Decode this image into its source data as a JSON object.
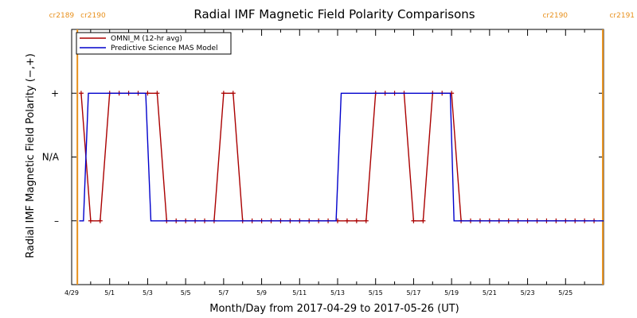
{
  "chart_data": {
    "type": "line",
    "title": "Radial IMF Magnetic Field Polarity Comparisons",
    "xlabel": "Month/Day from 2017-04-29 to 2017-05-26 (UT)",
    "ylabel": "Radial IMF Magnetic Field Polarity (−,+)",
    "x_range_days_from_0429": [
      0,
      28
    ],
    "y_range": [
      -2,
      2
    ],
    "x_ticks": [
      {
        "label": "4/29",
        "x": 0
      },
      {
        "label": "5/1",
        "x": 2
      },
      {
        "label": "5/3",
        "x": 4
      },
      {
        "label": "5/5",
        "x": 6
      },
      {
        "label": "5/7",
        "x": 8
      },
      {
        "label": "5/9",
        "x": 10
      },
      {
        "label": "5/11",
        "x": 12
      },
      {
        "label": "5/13",
        "x": 14
      },
      {
        "label": "5/15",
        "x": 16
      },
      {
        "label": "5/17",
        "x": 18
      },
      {
        "label": "5/19",
        "x": 20
      },
      {
        "label": "5/21",
        "x": 22
      },
      {
        "label": "5/23",
        "x": 24
      },
      {
        "label": "5/25",
        "x": 26
      }
    ],
    "y_ticks": [
      {
        "label": "+",
        "y": 1
      },
      {
        "label": "N/A",
        "y": 0
      },
      {
        "label": "–",
        "y": -1
      }
    ],
    "carrington_markers": [
      {
        "x": 0.3,
        "left_label": "cr2189",
        "right_label": "cr2190",
        "color": "#E8901C"
      },
      {
        "x": 27.96,
        "left_label": "cr2190",
        "right_label": "cr2191",
        "color": "#E8901C"
      }
    ],
    "legend": {
      "placement": "top-left",
      "entries": [
        {
          "name": "OMNI_M (12-hr avg)",
          "color": "#AA0000"
        },
        {
          "name": "Predictive Science MAS Model",
          "color": "#0000CC"
        }
      ]
    },
    "series": [
      {
        "name": "OMNI_M (12-hr avg)",
        "color": "#AA0000",
        "marker": "plus",
        "points": [
          [
            0.5,
            1
          ],
          [
            1.0,
            -1
          ],
          [
            1.5,
            -1
          ],
          [
            2.0,
            1
          ],
          [
            2.5,
            1
          ],
          [
            3.0,
            1
          ],
          [
            3.5,
            1
          ],
          [
            4.0,
            1
          ],
          [
            4.5,
            1
          ],
          [
            5.0,
            -1
          ],
          [
            5.5,
            -1
          ],
          [
            6.0,
            -1
          ],
          [
            6.5,
            -1
          ],
          [
            7.0,
            -1
          ],
          [
            7.5,
            -1
          ],
          [
            8.0,
            1
          ],
          [
            8.5,
            1
          ],
          [
            9.0,
            -1
          ],
          [
            9.5,
            -1
          ],
          [
            10.0,
            -1
          ],
          [
            10.5,
            -1
          ],
          [
            11.0,
            -1
          ],
          [
            11.5,
            -1
          ],
          [
            12.0,
            -1
          ],
          [
            12.5,
            -1
          ],
          [
            13.0,
            -1
          ],
          [
            13.5,
            -1
          ],
          [
            14.0,
            -1
          ],
          [
            14.5,
            -1
          ],
          [
            15.0,
            -1
          ],
          [
            15.5,
            -1
          ],
          [
            16.0,
            1
          ],
          [
            16.5,
            1
          ],
          [
            17.0,
            1
          ],
          [
            17.5,
            1
          ],
          [
            18.0,
            -1
          ],
          [
            18.5,
            -1
          ],
          [
            19.0,
            1
          ],
          [
            19.5,
            1
          ],
          [
            20.0,
            1
          ],
          [
            20.5,
            -1
          ],
          [
            21.0,
            -1
          ],
          [
            21.5,
            -1
          ],
          [
            22.0,
            -1
          ],
          [
            22.5,
            -1
          ],
          [
            23.0,
            -1
          ],
          [
            23.5,
            -1
          ],
          [
            24.0,
            -1
          ],
          [
            24.5,
            -1
          ],
          [
            25.0,
            -1
          ],
          [
            25.5,
            -1
          ],
          [
            26.0,
            -1
          ],
          [
            26.5,
            -1
          ],
          [
            27.0,
            -1
          ],
          [
            27.5,
            -1
          ]
        ]
      },
      {
        "name": "Predictive Science MAS Model",
        "color": "#0000CC",
        "marker": "none",
        "points": [
          [
            0.4,
            -1
          ],
          [
            0.62,
            -1
          ],
          [
            0.88,
            1
          ],
          [
            3.9,
            1
          ],
          [
            4.17,
            -1
          ],
          [
            13.92,
            -1
          ],
          [
            14.19,
            1
          ],
          [
            19.93,
            1
          ],
          [
            20.13,
            -1
          ],
          [
            28.0,
            -1
          ]
        ]
      }
    ]
  }
}
